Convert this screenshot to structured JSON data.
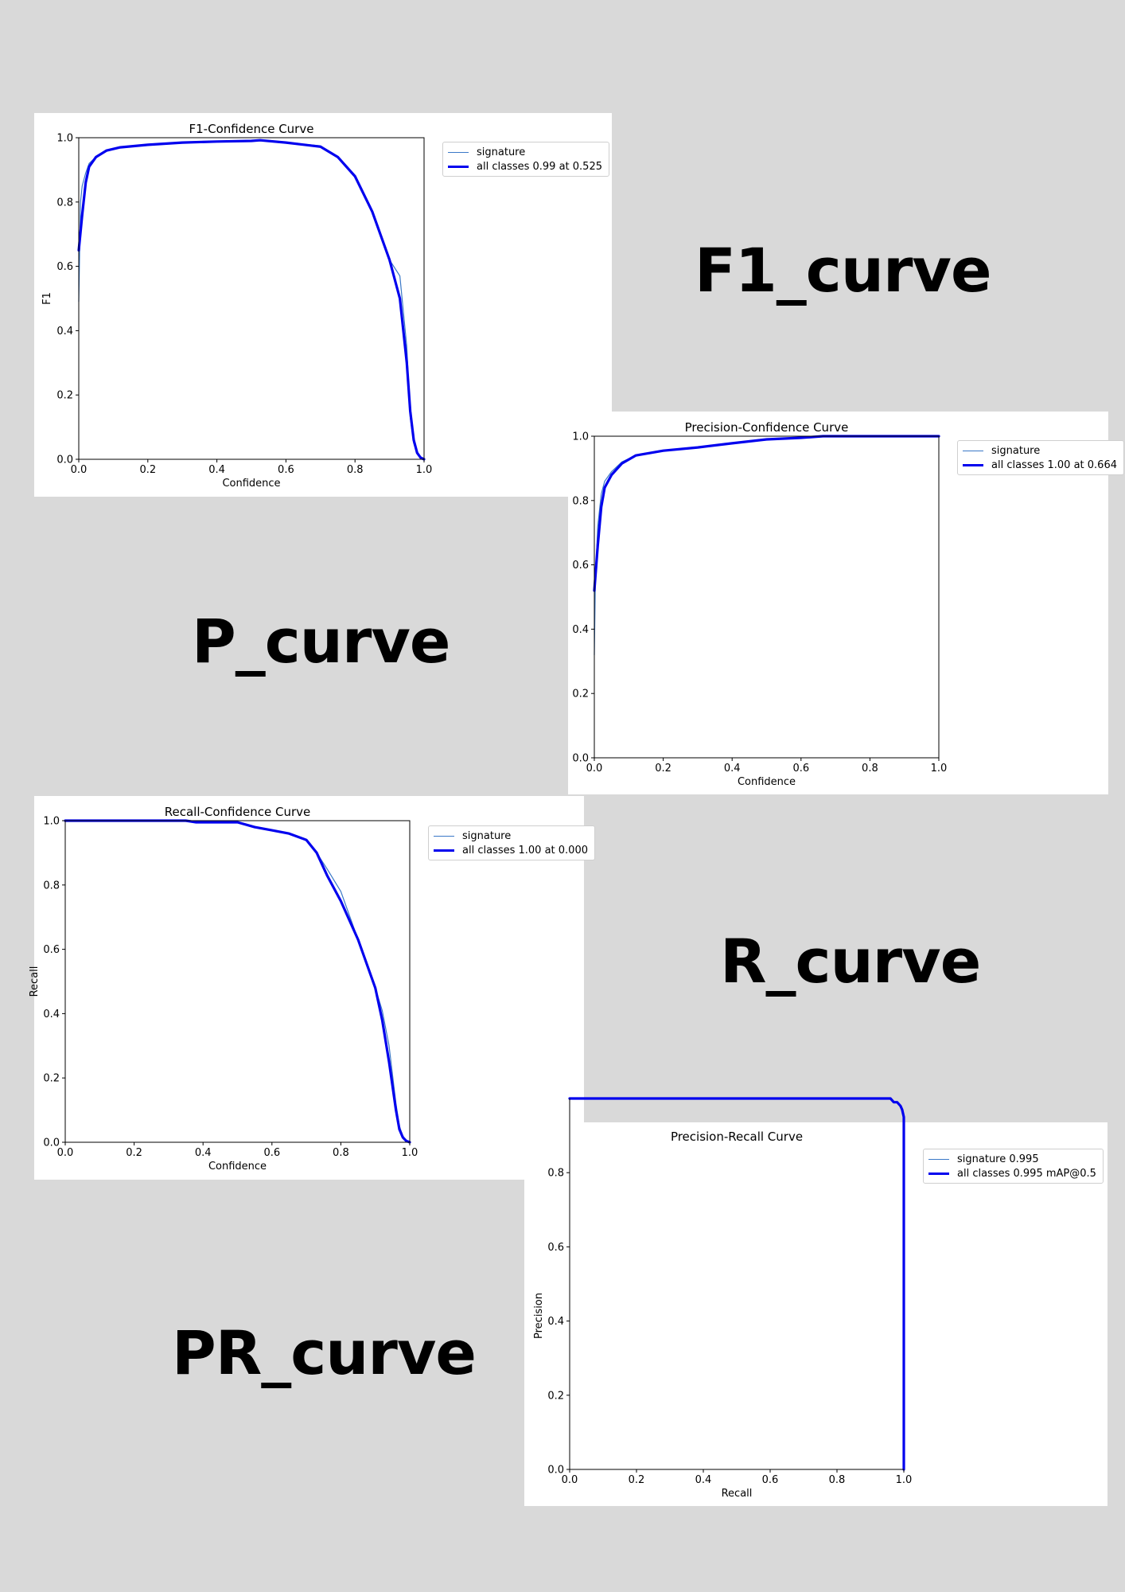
{
  "labels": {
    "f1": "F1_curve",
    "p": "P_curve",
    "r": "R_curve",
    "pr": "PR_curve"
  },
  "colors": {
    "background": "#d9d9d9",
    "class_line": "#3a78c7",
    "all_classes_line": "#0000ee"
  },
  "chart_data": [
    {
      "id": "f1",
      "type": "line",
      "title": "F1-Confidence Curve",
      "xlabel": "Confidence",
      "ylabel": "F1",
      "xlim": [
        0,
        1
      ],
      "ylim": [
        0,
        1
      ],
      "xticks": [
        "0.0",
        "0.2",
        "0.4",
        "0.6",
        "0.8",
        "1.0"
      ],
      "yticks": [
        "0.0",
        "0.2",
        "0.4",
        "0.6",
        "0.8",
        "1.0"
      ],
      "grid": false,
      "legend_position": "outside-right",
      "series": [
        {
          "name": "signature",
          "style": "thin",
          "x": [
            0,
            0.005,
            0.01,
            0.02,
            0.03,
            0.05,
            0.08,
            0.12,
            0.2,
            0.3,
            0.4,
            0.5,
            0.525,
            0.6,
            0.7,
            0.75,
            0.8,
            0.85,
            0.9,
            0.93,
            0.95,
            0.96,
            0.97,
            0.98,
            0.99,
            1.0
          ],
          "y": [
            0.49,
            0.8,
            0.85,
            0.89,
            0.92,
            0.94,
            0.96,
            0.97,
            0.98,
            0.985,
            0.988,
            0.99,
            0.992,
            0.985,
            0.975,
            0.94,
            0.88,
            0.77,
            0.62,
            0.57,
            0.35,
            0.13,
            0.05,
            0.02,
            0.005,
            0.0
          ]
        },
        {
          "name": "all classes 0.99 at 0.525",
          "style": "thick",
          "x": [
            0,
            0.01,
            0.02,
            0.03,
            0.05,
            0.08,
            0.12,
            0.2,
            0.3,
            0.4,
            0.5,
            0.525,
            0.6,
            0.7,
            0.75,
            0.8,
            0.85,
            0.9,
            0.93,
            0.95,
            0.96,
            0.97,
            0.98,
            0.99,
            1.0
          ],
          "y": [
            0.65,
            0.76,
            0.86,
            0.91,
            0.94,
            0.96,
            0.97,
            0.978,
            0.985,
            0.988,
            0.99,
            0.992,
            0.985,
            0.972,
            0.94,
            0.88,
            0.77,
            0.62,
            0.5,
            0.3,
            0.15,
            0.06,
            0.02,
            0.005,
            0.0
          ]
        }
      ]
    },
    {
      "id": "p",
      "type": "line",
      "title": "Precision-Confidence Curve",
      "xlabel": "Confidence",
      "ylabel": "",
      "xlim": [
        0,
        1
      ],
      "ylim": [
        0,
        1
      ],
      "xticks": [
        "0.0",
        "0.2",
        "0.4",
        "0.6",
        "0.8",
        "1.0"
      ],
      "yticks": [
        "0.0",
        "0.2",
        "0.4",
        "0.6",
        "0.8",
        "1.0"
      ],
      "grid": false,
      "legend_position": "outside-right",
      "series": [
        {
          "name": "signature",
          "style": "thin",
          "x": [
            0,
            0.003,
            0.01,
            0.02,
            0.03,
            0.05,
            0.08,
            0.12,
            0.2,
            0.3,
            0.4,
            0.5,
            0.6,
            0.664,
            0.7,
            0.8,
            0.9,
            1.0
          ],
          "y": [
            0.32,
            0.55,
            0.72,
            0.82,
            0.86,
            0.89,
            0.92,
            0.94,
            0.955,
            0.965,
            0.978,
            0.99,
            0.995,
            1.0,
            1.0,
            1.0,
            1.0,
            1.0
          ]
        },
        {
          "name": "all classes 1.00 at 0.664",
          "style": "thick",
          "x": [
            0,
            0.01,
            0.02,
            0.03,
            0.05,
            0.08,
            0.12,
            0.2,
            0.3,
            0.4,
            0.5,
            0.6,
            0.664,
            0.7,
            0.8,
            0.9,
            1.0
          ],
          "y": [
            0.52,
            0.66,
            0.78,
            0.84,
            0.88,
            0.915,
            0.94,
            0.955,
            0.965,
            0.978,
            0.99,
            0.995,
            1.0,
            1.0,
            1.0,
            1.0,
            1.0
          ]
        }
      ]
    },
    {
      "id": "r",
      "type": "line",
      "title": "Recall-Confidence Curve",
      "xlabel": "Confidence",
      "ylabel": "Recall",
      "xlim": [
        0,
        1
      ],
      "ylim": [
        0,
        1
      ],
      "xticks": [
        "0.0",
        "0.2",
        "0.4",
        "0.6",
        "0.8",
        "1.0"
      ],
      "yticks": [
        "0.0",
        "0.2",
        "0.4",
        "0.6",
        "0.8",
        "1.0"
      ],
      "grid": false,
      "legend_position": "outside-right",
      "series": [
        {
          "name": "signature",
          "style": "thin",
          "x": [
            0,
            0.2,
            0.35,
            0.38,
            0.5,
            0.55,
            0.6,
            0.65,
            0.7,
            0.73,
            0.76,
            0.8,
            0.85,
            0.9,
            0.92,
            0.94,
            0.96,
            0.97,
            0.98,
            0.99,
            1.0
          ],
          "y": [
            1.0,
            1.0,
            1.0,
            0.995,
            0.995,
            0.98,
            0.97,
            0.96,
            0.94,
            0.9,
            0.85,
            0.78,
            0.63,
            0.48,
            0.41,
            0.3,
            0.12,
            0.05,
            0.02,
            0.005,
            0.0
          ]
        },
        {
          "name": "all classes 1.00 at 0.000",
          "style": "thick",
          "x": [
            0,
            0.2,
            0.35,
            0.38,
            0.5,
            0.55,
            0.6,
            0.65,
            0.7,
            0.73,
            0.76,
            0.8,
            0.85,
            0.9,
            0.92,
            0.94,
            0.96,
            0.97,
            0.98,
            0.99,
            1.0
          ],
          "y": [
            1.0,
            1.0,
            1.0,
            0.995,
            0.995,
            0.98,
            0.97,
            0.96,
            0.94,
            0.9,
            0.83,
            0.75,
            0.63,
            0.48,
            0.38,
            0.25,
            0.1,
            0.04,
            0.015,
            0.004,
            0.0
          ]
        }
      ]
    },
    {
      "id": "pr",
      "type": "line",
      "title": "Precision-Recall Curve",
      "xlabel": "Recall",
      "ylabel": "Precision",
      "xlim": [
        0,
        1
      ],
      "ylim": [
        0,
        1
      ],
      "xticks": [
        "0.0",
        "0.2",
        "0.4",
        "0.6",
        "0.8",
        "1.0"
      ],
      "yticks": [
        "0.0",
        "0.2",
        "0.4",
        "0.6",
        "0.8"
      ],
      "grid": false,
      "legend_position": "outside-right",
      "series": [
        {
          "name": "signature 0.995",
          "style": "thin",
          "x": [
            0,
            0.96,
            0.97,
            0.98,
            0.99,
            0.995,
            1.0,
            1.0
          ],
          "y": [
            1.0,
            1.0,
            0.99,
            0.99,
            0.98,
            0.97,
            0.95,
            0.0
          ]
        },
        {
          "name": "all classes 0.995 mAP@0.5",
          "style": "thick",
          "x": [
            0,
            0.96,
            0.97,
            0.98,
            0.99,
            0.995,
            1.0,
            1.0
          ],
          "y": [
            1.0,
            1.0,
            0.99,
            0.99,
            0.98,
            0.97,
            0.95,
            0.0
          ]
        }
      ]
    }
  ]
}
